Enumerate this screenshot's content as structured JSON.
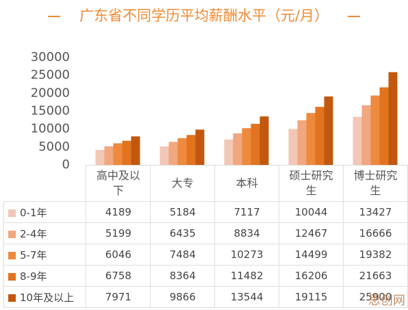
{
  "chart_data": {
    "type": "bar",
    "title": "广东省不同学历平均薪酬水平（元/月）",
    "categories": [
      "高中及以下",
      "大专",
      "本科",
      "硕士研究生",
      "博士研究生"
    ],
    "series": [
      {
        "name": "0-1年",
        "color": "#f3c7b6",
        "values": [
          4189,
          5184,
          7117,
          10044,
          13427
        ]
      },
      {
        "name": "2-4年",
        "color": "#f1a77f",
        "values": [
          5199,
          6435,
          8834,
          12467,
          16666
        ]
      },
      {
        "name": "5-7年",
        "color": "#ed8a3e",
        "values": [
          6046,
          7484,
          10273,
          14499,
          19382
        ]
      },
      {
        "name": "8-9年",
        "color": "#e2731f",
        "values": [
          6758,
          8364,
          11482,
          16206,
          21663
        ]
      },
      {
        "name": "10年及以上",
        "color": "#c2580f",
        "values": [
          7971,
          9866,
          13544,
          19115,
          25900
        ]
      }
    ],
    "ylim": [
      0,
      30000
    ],
    "yticks": [
      0,
      5000,
      10000,
      15000,
      20000,
      25000,
      30000
    ],
    "watermark": "思创网"
  }
}
